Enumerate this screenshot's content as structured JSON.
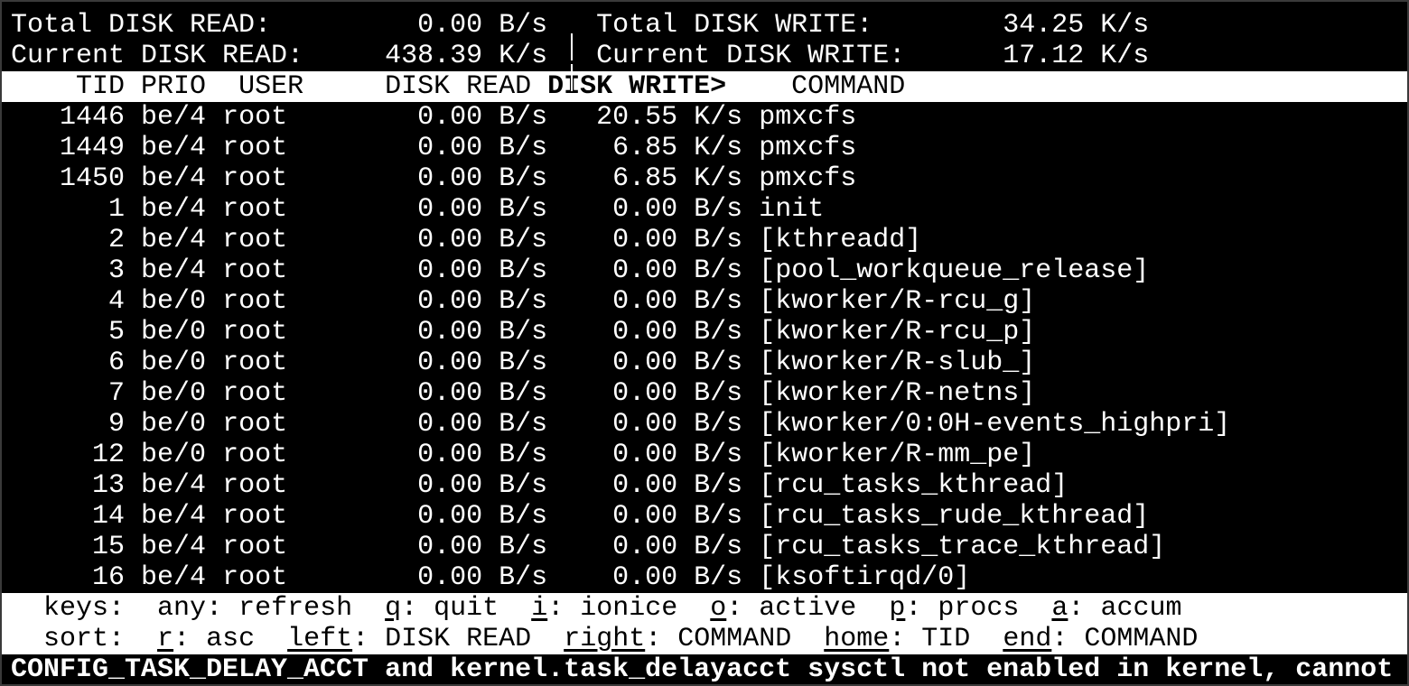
{
  "summary": {
    "total_read_label": "Total DISK READ:",
    "total_read_value": "0.00 B/s",
    "total_write_label": "Total DISK WRITE:",
    "total_write_value": "34.25 K/s",
    "current_read_label": "Current DISK READ:",
    "current_read_value": "438.39 K/s",
    "current_write_label": "Current DISK WRITE:",
    "current_write_value": "17.12 K/s"
  },
  "columns": {
    "tid": "TID",
    "prio": "PRIO",
    "user": "USER",
    "read": "DISK READ",
    "write": "DISK WRITE>",
    "command": "COMMAND"
  },
  "sorted_column": "write",
  "rows": [
    {
      "tid": "1446",
      "prio": "be/4",
      "user": "root",
      "read": "0.00 B/s",
      "write": "20.55 K/s",
      "command": "pmxcfs"
    },
    {
      "tid": "1449",
      "prio": "be/4",
      "user": "root",
      "read": "0.00 B/s",
      "write": "6.85 K/s",
      "command": "pmxcfs"
    },
    {
      "tid": "1450",
      "prio": "be/4",
      "user": "root",
      "read": "0.00 B/s",
      "write": "6.85 K/s",
      "command": "pmxcfs"
    },
    {
      "tid": "1",
      "prio": "be/4",
      "user": "root",
      "read": "0.00 B/s",
      "write": "0.00 B/s",
      "command": "init"
    },
    {
      "tid": "2",
      "prio": "be/4",
      "user": "root",
      "read": "0.00 B/s",
      "write": "0.00 B/s",
      "command": "[kthreadd]"
    },
    {
      "tid": "3",
      "prio": "be/4",
      "user": "root",
      "read": "0.00 B/s",
      "write": "0.00 B/s",
      "command": "[pool_workqueue_release]"
    },
    {
      "tid": "4",
      "prio": "be/0",
      "user": "root",
      "read": "0.00 B/s",
      "write": "0.00 B/s",
      "command": "[kworker/R-rcu_g]"
    },
    {
      "tid": "5",
      "prio": "be/0",
      "user": "root",
      "read": "0.00 B/s",
      "write": "0.00 B/s",
      "command": "[kworker/R-rcu_p]"
    },
    {
      "tid": "6",
      "prio": "be/0",
      "user": "root",
      "read": "0.00 B/s",
      "write": "0.00 B/s",
      "command": "[kworker/R-slub_]"
    },
    {
      "tid": "7",
      "prio": "be/0",
      "user": "root",
      "read": "0.00 B/s",
      "write": "0.00 B/s",
      "command": "[kworker/R-netns]"
    },
    {
      "tid": "9",
      "prio": "be/0",
      "user": "root",
      "read": "0.00 B/s",
      "write": "0.00 B/s",
      "command": "[kworker/0:0H-events_highpri]"
    },
    {
      "tid": "12",
      "prio": "be/0",
      "user": "root",
      "read": "0.00 B/s",
      "write": "0.00 B/s",
      "command": "[kworker/R-mm_pe]"
    },
    {
      "tid": "13",
      "prio": "be/4",
      "user": "root",
      "read": "0.00 B/s",
      "write": "0.00 B/s",
      "command": "[rcu_tasks_kthread]"
    },
    {
      "tid": "14",
      "prio": "be/4",
      "user": "root",
      "read": "0.00 B/s",
      "write": "0.00 B/s",
      "command": "[rcu_tasks_rude_kthread]"
    },
    {
      "tid": "15",
      "prio": "be/4",
      "user": "root",
      "read": "0.00 B/s",
      "write": "0.00 B/s",
      "command": "[rcu_tasks_trace_kthread]"
    },
    {
      "tid": "16",
      "prio": "be/4",
      "user": "root",
      "read": "0.00 B/s",
      "write": "0.00 B/s",
      "command": "[ksoftirqd/0]"
    }
  ],
  "help": {
    "keys_label": "keys:",
    "keys": [
      {
        "key": "any",
        "underline": false,
        "desc": "refresh"
      },
      {
        "key": "q",
        "underline": true,
        "desc": "quit"
      },
      {
        "key": "i",
        "underline": true,
        "desc": "ionice"
      },
      {
        "key": "o",
        "underline": true,
        "desc": "active"
      },
      {
        "key": "p",
        "underline": true,
        "desc": "procs"
      },
      {
        "key": "a",
        "underline": true,
        "desc": "accum"
      }
    ],
    "sort_label": "sort:",
    "sort": [
      {
        "key": "r",
        "underline": true,
        "desc": "asc"
      },
      {
        "key": "left",
        "underline": true,
        "desc": "DISK READ"
      },
      {
        "key": "right",
        "underline": true,
        "desc": "COMMAND"
      },
      {
        "key": "home",
        "underline": true,
        "desc": "TID"
      },
      {
        "key": "end",
        "underline": true,
        "desc": "COMMAND"
      }
    ]
  },
  "warning": "CONFIG_TASK_DELAY_ACCT and kernel.task_delayacct sysctl not enabled in kernel, cannot",
  "colors": {
    "background": "#000000",
    "foreground": "#ffffff",
    "frame": "#3a3a3a"
  }
}
